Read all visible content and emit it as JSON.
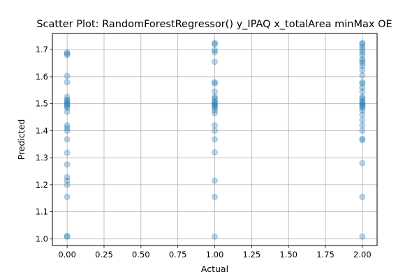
{
  "chart_data": {
    "type": "scatter",
    "title": "Scatter Plot: RandomForestRegressor() y_IPAQ x_totalArea minMax OE",
    "xlabel": "Actual",
    "ylabel": "Predicted",
    "xlim": [
      -0.1,
      2.1
    ],
    "ylim": [
      0.975,
      1.76
    ],
    "xticks": [
      "0.00",
      "0.25",
      "0.50",
      "0.75",
      "1.00",
      "1.25",
      "1.50",
      "1.75",
      "2.00"
    ],
    "yticks": [
      "1.0",
      "1.1",
      "1.2",
      "1.3",
      "1.4",
      "1.5",
      "1.6",
      "1.7"
    ],
    "grid": true,
    "marker_color": "#1f77b4",
    "marker_alpha": 0.3,
    "points": [
      [
        0,
        1.69
      ],
      [
        0,
        1.685
      ],
      [
        0,
        1.68
      ],
      [
        0,
        1.603
      ],
      [
        0,
        1.58
      ],
      [
        0,
        1.525
      ],
      [
        0,
        1.515
      ],
      [
        0,
        1.51
      ],
      [
        0,
        1.505
      ],
      [
        0,
        1.5
      ],
      [
        0,
        1.495
      ],
      [
        0,
        1.49
      ],
      [
        0,
        1.485
      ],
      [
        0,
        1.47
      ],
      [
        0,
        1.42
      ],
      [
        0,
        1.41
      ],
      [
        0,
        1.4
      ],
      [
        0,
        1.368
      ],
      [
        0,
        1.318
      ],
      [
        0,
        1.275
      ],
      [
        0,
        1.228
      ],
      [
        0,
        1.215
      ],
      [
        0,
        1.2
      ],
      [
        0,
        1.155
      ],
      [
        0,
        1.01
      ],
      [
        0,
        1.008
      ],
      [
        1,
        1.725
      ],
      [
        1,
        1.72
      ],
      [
        1,
        1.698
      ],
      [
        1,
        1.69
      ],
      [
        1,
        1.655
      ],
      [
        1,
        1.58
      ],
      [
        1,
        1.575
      ],
      [
        1,
        1.545
      ],
      [
        1,
        1.525
      ],
      [
        1,
        1.52
      ],
      [
        1,
        1.51
      ],
      [
        1,
        1.505
      ],
      [
        1,
        1.5
      ],
      [
        1,
        1.495
      ],
      [
        1,
        1.49
      ],
      [
        1,
        1.485
      ],
      [
        1,
        1.475
      ],
      [
        1,
        1.465
      ],
      [
        1,
        1.42
      ],
      [
        1,
        1.4
      ],
      [
        1,
        1.368
      ],
      [
        1,
        1.32
      ],
      [
        1,
        1.215
      ],
      [
        1,
        1.155
      ],
      [
        1,
        1.008
      ],
      [
        2,
        1.725
      ],
      [
        2,
        1.72
      ],
      [
        2,
        1.71
      ],
      [
        2,
        1.7
      ],
      [
        2,
        1.69
      ],
      [
        2,
        1.68
      ],
      [
        2,
        1.665
      ],
      [
        2,
        1.658
      ],
      [
        2,
        1.65
      ],
      [
        2,
        1.64
      ],
      [
        2,
        1.625
      ],
      [
        2,
        1.605
      ],
      [
        2,
        1.58
      ],
      [
        2,
        1.575
      ],
      [
        2,
        1.56
      ],
      [
        2,
        1.545
      ],
      [
        2,
        1.525
      ],
      [
        2,
        1.52
      ],
      [
        2,
        1.51
      ],
      [
        2,
        1.505
      ],
      [
        2,
        1.5
      ],
      [
        2,
        1.495
      ],
      [
        2,
        1.49
      ],
      [
        2,
        1.485
      ],
      [
        2,
        1.475
      ],
      [
        2,
        1.46
      ],
      [
        2,
        1.44
      ],
      [
        2,
        1.42
      ],
      [
        2,
        1.4
      ],
      [
        2,
        1.37
      ],
      [
        2,
        1.365
      ],
      [
        2,
        1.28
      ],
      [
        2,
        1.155
      ],
      [
        2,
        1.008
      ]
    ]
  }
}
